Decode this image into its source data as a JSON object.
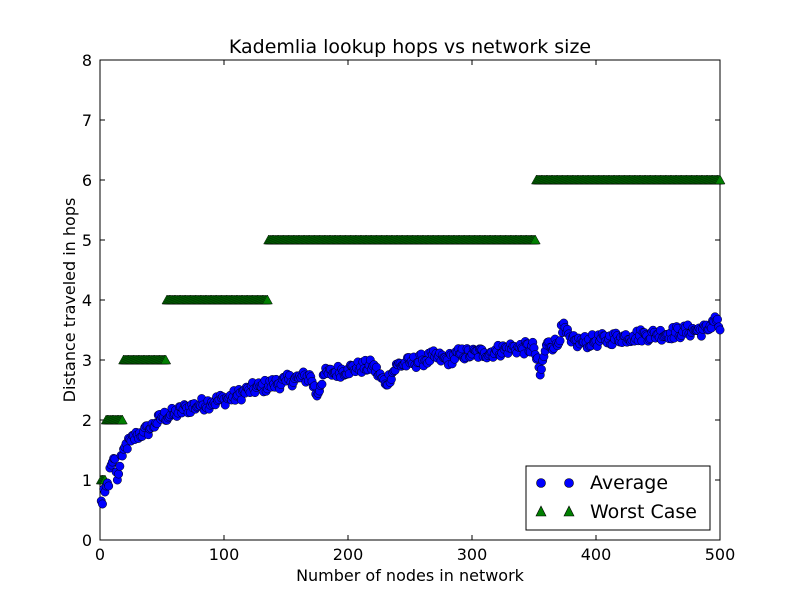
{
  "chart_data": {
    "type": "scatter",
    "title": "Kademlia lookup hops vs network size",
    "xlabel": "Number of nodes in network",
    "ylabel": "Distance traveled in hops",
    "xlim": [
      0,
      500
    ],
    "ylim": [
      0,
      8
    ],
    "xticks": [
      0,
      100,
      200,
      300,
      400,
      500
    ],
    "yticks": [
      0,
      1,
      2,
      3,
      4,
      5,
      6,
      7,
      8
    ],
    "grid": false,
    "legend_position": "lower-right",
    "average_model": "approximately log2-shaped growth from about 0.6 hops at 1 node to about 3.5 hops at 500 nodes, one point per network size 1-500",
    "series": [
      {
        "name": "Average",
        "marker": "circle",
        "color": "#0000ff",
        "points": [
          [
            1,
            0.65
          ],
          [
            2,
            0.6
          ],
          [
            3,
            0.85
          ],
          [
            4,
            0.8
          ],
          [
            5,
            0.9
          ],
          [
            6,
            0.95
          ],
          [
            7,
            0.9
          ],
          [
            8,
            1.2
          ],
          [
            9,
            1.25
          ],
          [
            10,
            1.3
          ],
          [
            12,
            1.35
          ],
          [
            14,
            1.0
          ],
          [
            15,
            1.1
          ],
          [
            18,
            1.4
          ],
          [
            20,
            1.55
          ],
          [
            25,
            1.65
          ],
          [
            30,
            1.75
          ],
          [
            35,
            1.8
          ],
          [
            40,
            1.85
          ],
          [
            45,
            1.95
          ],
          [
            50,
            2.05
          ],
          [
            60,
            2.1
          ],
          [
            70,
            2.2
          ],
          [
            80,
            2.25
          ],
          [
            90,
            2.3
          ],
          [
            100,
            2.35
          ],
          [
            110,
            2.4
          ],
          [
            120,
            2.5
          ],
          [
            130,
            2.55
          ],
          [
            140,
            2.6
          ],
          [
            150,
            2.65
          ],
          [
            160,
            2.7
          ],
          [
            170,
            2.72
          ],
          [
            175,
            2.4
          ],
          [
            180,
            2.75
          ],
          [
            190,
            2.8
          ],
          [
            200,
            2.85
          ],
          [
            210,
            2.88
          ],
          [
            220,
            2.9
          ],
          [
            230,
            2.6
          ],
          [
            240,
            2.92
          ],
          [
            250,
            2.95
          ],
          [
            260,
            3.0
          ],
          [
            270,
            3.05
          ],
          [
            280,
            3.0
          ],
          [
            290,
            3.1
          ],
          [
            300,
            3.1
          ],
          [
            310,
            3.12
          ],
          [
            320,
            3.15
          ],
          [
            330,
            3.2
          ],
          [
            340,
            3.2
          ],
          [
            350,
            3.2
          ],
          [
            355,
            2.75
          ],
          [
            360,
            3.25
          ],
          [
            370,
            3.28
          ],
          [
            372,
            3.58
          ],
          [
            380,
            3.3
          ],
          [
            390,
            3.3
          ],
          [
            400,
            3.32
          ],
          [
            410,
            3.35
          ],
          [
            420,
            3.38
          ],
          [
            430,
            3.4
          ],
          [
            440,
            3.42
          ],
          [
            450,
            3.43
          ],
          [
            460,
            3.45
          ],
          [
            470,
            3.47
          ],
          [
            480,
            3.5
          ],
          [
            490,
            3.5
          ],
          [
            496,
            3.72
          ],
          [
            500,
            3.5
          ]
        ]
      },
      {
        "name": "Worst Case",
        "marker": "triangle",
        "color": "#007f00",
        "steps": [
          {
            "x_from": 1,
            "x_to": 4,
            "y": 1
          },
          {
            "x_from": 5,
            "x_to": 18,
            "y": 2
          },
          {
            "x_from": 19,
            "x_to": 53,
            "y": 3
          },
          {
            "x_from": 54,
            "x_to": 135,
            "y": 4
          },
          {
            "x_from": 136,
            "x_to": 351,
            "y": 5
          },
          {
            "x_from": 352,
            "x_to": 500,
            "y": 6
          }
        ]
      }
    ]
  }
}
